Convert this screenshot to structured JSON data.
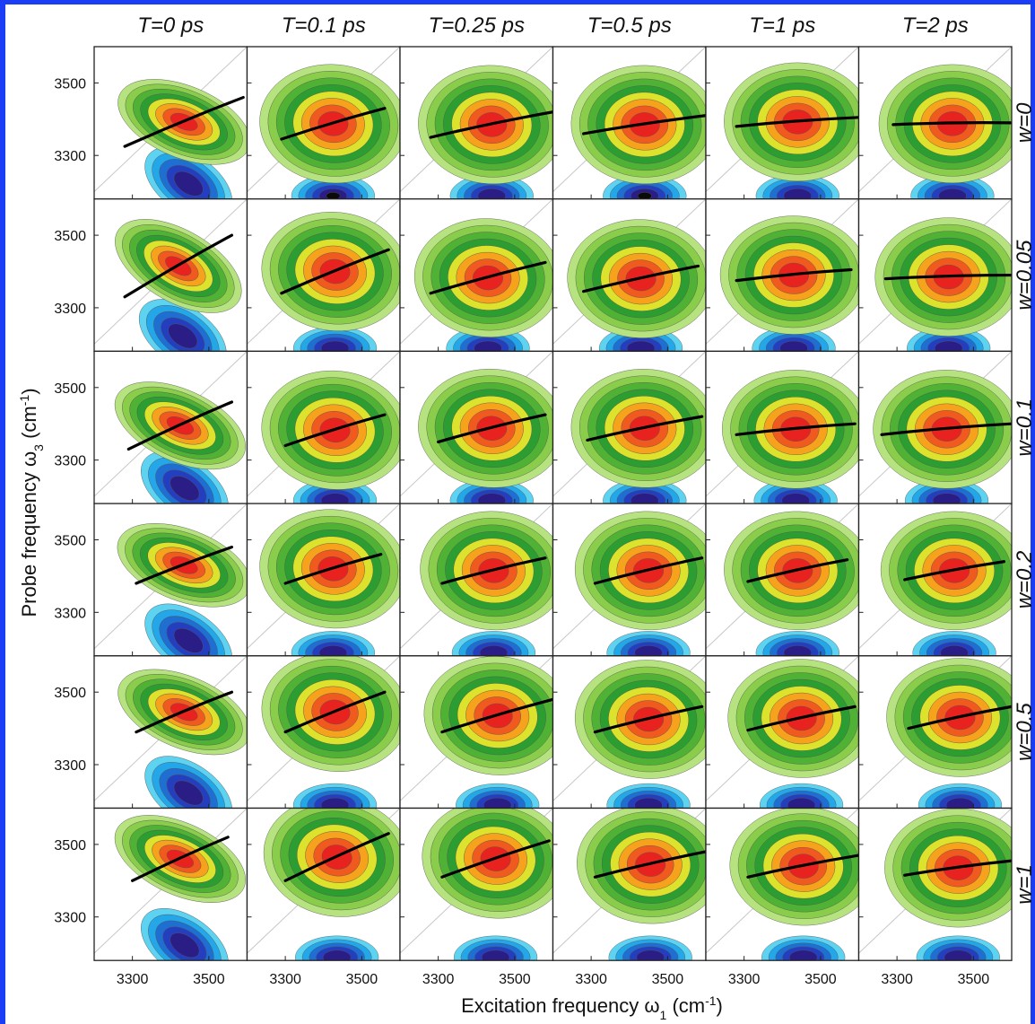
{
  "chart_data": {
    "type": "heatmap",
    "figure_kind": "grid of 2D IR spectra (contour maps) with center line slopes",
    "rows": 6,
    "cols": 6,
    "col_titles": [
      "T=0 ps",
      "T=0.1 ps",
      "T=0.25 ps",
      "T=0.5 ps",
      "T=1 ps",
      "T=2 ps"
    ],
    "row_titles": [
      "w=0",
      "w=0.05",
      "w=0.1",
      "w=0.2",
      "w=0.5",
      "w=1"
    ],
    "xlabel": "Excitation frequency ω₁ (cm⁻¹)",
    "ylabel": "Probe frequency ω₃ (cm⁻¹)",
    "xlabel_parts": {
      "main": "Excitation frequency ω",
      "sub": "1",
      "unit_open": " (cm",
      "sup": "-1",
      "unit_close": ")"
    },
    "ylabel_parts": {
      "main": "Probe frequency ω",
      "sub": "3",
      "unit_open": " (cm",
      "sup": "-1",
      "unit_close": ")"
    },
    "x_ticks": [
      3300,
      3500
    ],
    "y_ticks": [
      3500,
      3300
    ],
    "xlim": [
      3200,
      3600
    ],
    "ylim": [
      3180,
      3600
    ],
    "colormap": {
      "positive": [
        "#b6e27f",
        "#89cd4b",
        "#4fb234",
        "#2c9d30",
        "#dde22c",
        "#f6a21c",
        "#f15a1f",
        "#e8231f"
      ],
      "negative": [
        "#5ed2f1",
        "#24a7e8",
        "#1e6fd1",
        "#233fbf",
        "#2b1d86",
        "#0b0b0b"
      ]
    },
    "center_lines": {
      "description": "Center line (probe frequency at peak) vs excitation frequency for each panel",
      "panels": [
        [
          {
            "x": [
              3280,
              3590
            ],
            "y": [
              3325,
              3460
            ]
          },
          {
            "x": [
              3290,
              3560
            ],
            "y": [
              3345,
              3430
            ]
          },
          {
            "x": [
              3280,
              3600
            ],
            "y": [
              3350,
              3420
            ]
          },
          {
            "x": [
              3280,
              3600
            ],
            "y": [
              3360,
              3410
            ]
          },
          {
            "x": [
              3280,
              3600
            ],
            "y": [
              3380,
              3405
            ]
          },
          {
            "x": [
              3290,
              3600
            ],
            "y": [
              3385,
              3390
            ]
          }
        ],
        [
          {
            "x": [
              3280,
              3560
            ],
            "y": [
              3330,
              3500
            ]
          },
          {
            "x": [
              3290,
              3570
            ],
            "y": [
              3340,
              3460
            ]
          },
          {
            "x": [
              3280,
              3580
            ],
            "y": [
              3340,
              3425
            ]
          },
          {
            "x": [
              3280,
              3580
            ],
            "y": [
              3345,
              3415
            ]
          },
          {
            "x": [
              3280,
              3580
            ],
            "y": [
              3375,
              3405
            ]
          },
          {
            "x": [
              3270,
              3600
            ],
            "y": [
              3380,
              3390
            ]
          }
        ],
        [
          {
            "x": [
              3290,
              3560
            ],
            "y": [
              3330,
              3460
            ]
          },
          {
            "x": [
              3300,
              3560
            ],
            "y": [
              3340,
              3425
            ]
          },
          {
            "x": [
              3300,
              3580
            ],
            "y": [
              3350,
              3425
            ]
          },
          {
            "x": [
              3290,
              3590
            ],
            "y": [
              3355,
              3420
            ]
          },
          {
            "x": [
              3280,
              3590
            ],
            "y": [
              3370,
              3400
            ]
          },
          {
            "x": [
              3260,
              3600
            ],
            "y": [
              3370,
              3400
            ]
          }
        ],
        [
          {
            "x": [
              3310,
              3560
            ],
            "y": [
              3380,
              3480
            ]
          },
          {
            "x": [
              3300,
              3550
            ],
            "y": [
              3380,
              3460
            ]
          },
          {
            "x": [
              3310,
              3580
            ],
            "y": [
              3380,
              3450
            ]
          },
          {
            "x": [
              3310,
              3590
            ],
            "y": [
              3380,
              3450
            ]
          },
          {
            "x": [
              3310,
              3570
            ],
            "y": [
              3385,
              3445
            ]
          },
          {
            "x": [
              3320,
              3580
            ],
            "y": [
              3390,
              3440
            ]
          }
        ],
        [
          {
            "x": [
              3310,
              3560
            ],
            "y": [
              3390,
              3500
            ]
          },
          {
            "x": [
              3300,
              3560
            ],
            "y": [
              3390,
              3500
            ]
          },
          {
            "x": [
              3310,
              3600
            ],
            "y": [
              3390,
              3480
            ]
          },
          {
            "x": [
              3310,
              3590
            ],
            "y": [
              3390,
              3460
            ]
          },
          {
            "x": [
              3310,
              3590
            ],
            "y": [
              3395,
              3460
            ]
          },
          {
            "x": [
              3330,
              3600
            ],
            "y": [
              3400,
              3460
            ]
          }
        ],
        [
          {
            "x": [
              3300,
              3550
            ],
            "y": [
              3400,
              3520
            ]
          },
          {
            "x": [
              3300,
              3570
            ],
            "y": [
              3400,
              3530
            ]
          },
          {
            "x": [
              3310,
              3590
            ],
            "y": [
              3410,
              3510
            ]
          },
          {
            "x": [
              3310,
              3600
            ],
            "y": [
              3410,
              3480
            ]
          },
          {
            "x": [
              3310,
              3600
            ],
            "y": [
              3410,
              3470
            ]
          },
          {
            "x": [
              3320,
              3600
            ],
            "y": [
              3415,
              3455
            ]
          }
        ]
      ]
    }
  }
}
